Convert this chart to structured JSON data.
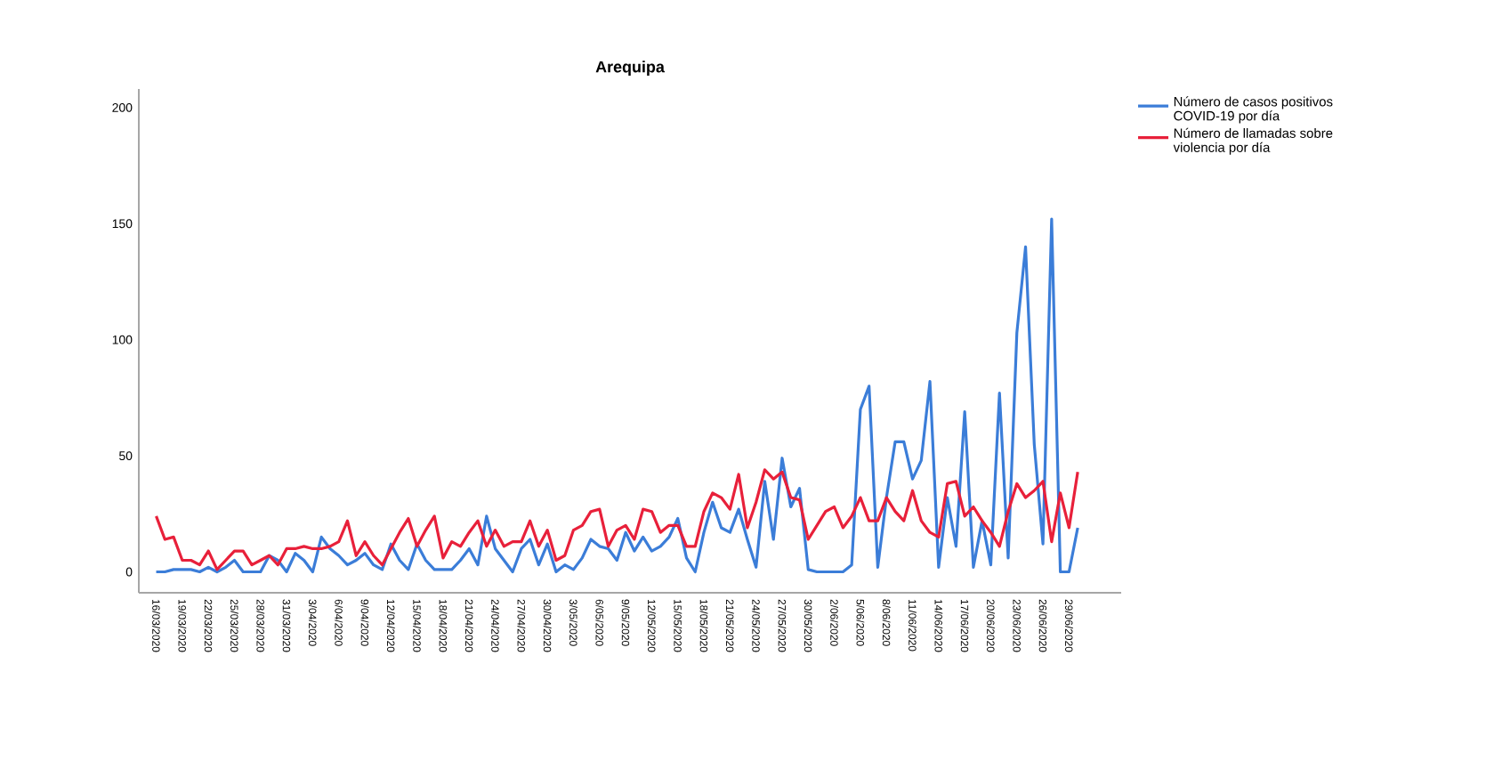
{
  "chart_data": {
    "type": "line",
    "title": "Arequipa",
    "categories": [
      "16/03/2020",
      null,
      null,
      "19/03/2020",
      null,
      null,
      "22/03/2020",
      null,
      null,
      "25/03/2020",
      null,
      null,
      "28/03/2020",
      null,
      null,
      "31/03/2020",
      null,
      null,
      "3/04/2020",
      null,
      null,
      "6/04/2020",
      null,
      null,
      "9/04/2020",
      null,
      null,
      "12/04/2020",
      null,
      null,
      "15/04/2020",
      null,
      null,
      "18/04/2020",
      null,
      null,
      "21/04/2020",
      null,
      null,
      "24/04/2020",
      null,
      null,
      "27/04/2020",
      null,
      null,
      "30/04/2020",
      null,
      null,
      "3/05/2020",
      null,
      null,
      "6/05/2020",
      null,
      null,
      "9/05/2020",
      null,
      null,
      "12/05/2020",
      null,
      null,
      "15/05/2020",
      null,
      null,
      "18/05/2020",
      null,
      null,
      "21/05/2020",
      null,
      null,
      "24/05/2020",
      null,
      null,
      "27/05/2020",
      null,
      null,
      "30/05/2020",
      null,
      null,
      "2/06/2020",
      null,
      null,
      "5/06/2020",
      null,
      null,
      "8/06/2020",
      null,
      null,
      "11/06/2020",
      null,
      null,
      "14/06/2020",
      null,
      null,
      "17/06/2020",
      null,
      null,
      "20/06/2020",
      null,
      null,
      "23/06/2020",
      null,
      null,
      "26/06/2020",
      null,
      null,
      "29/06/2020",
      null
    ],
    "series": [
      {
        "name": "Número de casos positivos COVID-19 por día",
        "color": "#3b7dd8",
        "values": [
          0,
          0,
          1,
          1,
          1,
          0,
          2,
          0,
          2,
          5,
          0,
          0,
          0,
          7,
          5,
          0,
          8,
          5,
          0,
          15,
          10,
          7,
          3,
          5,
          8,
          3,
          1,
          12,
          5,
          1,
          12,
          5,
          1,
          1,
          1,
          5,
          10,
          3,
          24,
          10,
          5,
          0,
          10,
          14,
          3,
          12,
          0,
          3,
          1,
          6,
          14,
          11,
          10,
          5,
          17,
          9,
          15,
          9,
          11,
          15,
          23,
          6,
          0,
          17,
          30,
          19,
          17,
          27,
          14,
          2,
          39,
          14,
          49,
          28,
          36,
          1,
          0,
          0,
          0,
          0,
          3,
          70,
          80,
          2,
          32,
          56,
          56,
          40,
          48,
          82,
          2,
          32,
          11,
          69,
          2,
          22,
          3,
          77,
          6,
          103,
          140,
          55,
          12,
          152,
          0,
          0,
          19
        ]
      },
      {
        "name": "Número de llamadas sobre violencia por día",
        "color": "#e8203a",
        "values": [
          24,
          14,
          15,
          5,
          5,
          3,
          9,
          1,
          5,
          9,
          9,
          3,
          5,
          7,
          3,
          10,
          10,
          11,
          10,
          10,
          11,
          13,
          22,
          7,
          13,
          7,
          3,
          10,
          17,
          23,
          11,
          18,
          24,
          6,
          13,
          11,
          17,
          22,
          11,
          18,
          11,
          13,
          13,
          22,
          11,
          18,
          5,
          7,
          18,
          20,
          26,
          27,
          11,
          18,
          20,
          14,
          27,
          26,
          17,
          20,
          20,
          11,
          11,
          26,
          34,
          32,
          27,
          42,
          19,
          30,
          44,
          40,
          43,
          32,
          31,
          14,
          20,
          26,
          28,
          19,
          24,
          32,
          22,
          22,
          32,
          26,
          22,
          35,
          22,
          17,
          15,
          38,
          39,
          24,
          28,
          22,
          17,
          11,
          26,
          38,
          32,
          35,
          39,
          13,
          34,
          19,
          43
        ]
      }
    ],
    "ylim": [
      -9,
      208
    ],
    "yticks": [
      0,
      50,
      100,
      150,
      200
    ],
    "legend": "top right"
  }
}
